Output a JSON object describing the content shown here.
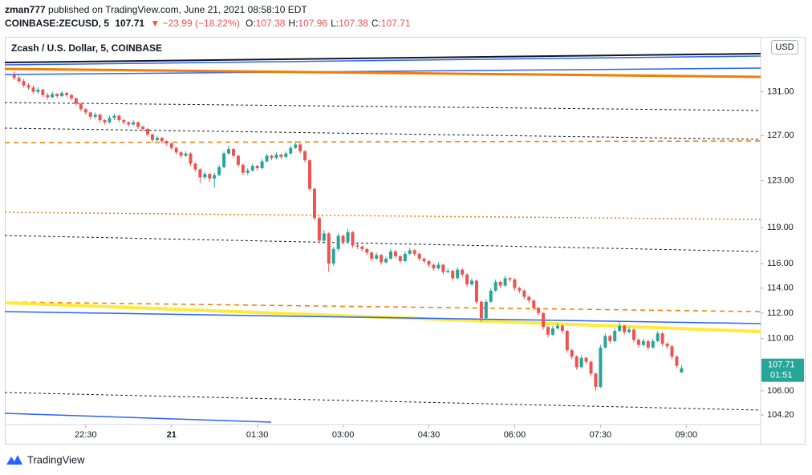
{
  "header": {
    "publisher": "zman777",
    "published": "published on TradingView.com, June 21, 2021 08:58:10 EDT",
    "symbol": "COINBASE:ZECUSD, 5",
    "price": "107.71",
    "change": "▼ −23.99 (−18.22%)",
    "ohlc": [
      {
        "label": "O:",
        "value": "107.38"
      },
      {
        "label": "H:",
        "value": "107.96"
      },
      {
        "label": "L:",
        "value": "107.38"
      },
      {
        "label": "C:",
        "value": "107.71"
      }
    ]
  },
  "chart_data": {
    "type": "candlestick",
    "title": "Zcash / U.S. Dollar, 5, COINBASE",
    "currency": "USD",
    "up_color": "#26a69a",
    "down_color": "#ef5350",
    "log_scale": true,
    "xlim": [
      1266,
      2058
    ],
    "ylim": [
      103.5,
      136.2
    ],
    "xticks": [
      {
        "value": 1350,
        "label": "22:30"
      },
      {
        "value": 1440,
        "label": "21"
      },
      {
        "value": 1530,
        "label": "01:30"
      },
      {
        "value": 1620,
        "label": "03:00"
      },
      {
        "value": 1710,
        "label": "04:30"
      },
      {
        "value": 1800,
        "label": "06:00"
      },
      {
        "value": 1890,
        "label": "07:30"
      },
      {
        "value": 1980,
        "label": "09:00"
      }
    ],
    "yticks": [
      {
        "value": 131,
        "label": "131.00"
      },
      {
        "value": 127,
        "label": "127.00"
      },
      {
        "value": 123,
        "label": "123.00"
      },
      {
        "value": 119,
        "label": "119.00"
      },
      {
        "value": 116,
        "label": "116.00"
      },
      {
        "value": 114,
        "label": "114.00"
      },
      {
        "value": 112,
        "label": "112.00"
      },
      {
        "value": 110,
        "label": "110.00"
      },
      {
        "value": 106,
        "label": "106.00"
      },
      {
        "value": 104.2,
        "label": "104.20"
      }
    ],
    "last_price_label": "107.71",
    "countdown": "01:51",
    "x": [
      1275,
      1280,
      1285,
      1290,
      1295,
      1300,
      1305,
      1310,
      1315,
      1320,
      1325,
      1330,
      1335,
      1340,
      1345,
      1350,
      1355,
      1360,
      1365,
      1370,
      1375,
      1380,
      1385,
      1390,
      1395,
      1400,
      1405,
      1410,
      1415,
      1420,
      1425,
      1430,
      1435,
      1440,
      1445,
      1450,
      1455,
      1460,
      1465,
      1470,
      1475,
      1480,
      1485,
      1490,
      1495,
      1500,
      1505,
      1510,
      1515,
      1520,
      1525,
      1530,
      1535,
      1540,
      1545,
      1550,
      1555,
      1560,
      1565,
      1570,
      1575,
      1580,
      1585,
      1590,
      1595,
      1600,
      1605,
      1610,
      1615,
      1620,
      1625,
      1630,
      1635,
      1640,
      1645,
      1650,
      1655,
      1660,
      1665,
      1670,
      1675,
      1680,
      1685,
      1690,
      1695,
      1700,
      1705,
      1710,
      1715,
      1720,
      1725,
      1730,
      1735,
      1740,
      1745,
      1750,
      1755,
      1760,
      1765,
      1770,
      1775,
      1780,
      1785,
      1790,
      1795,
      1800,
      1805,
      1810,
      1815,
      1820,
      1825,
      1830,
      1835,
      1840,
      1845,
      1850,
      1855,
      1860,
      1865,
      1870,
      1875,
      1880,
      1885,
      1890,
      1895,
      1900,
      1905,
      1910,
      1915,
      1920,
      1925,
      1930,
      1935,
      1940,
      1945,
      1950,
      1955,
      1960,
      1965,
      1970,
      1975
    ],
    "candles": [
      [
        132.6,
        132.9,
        132.1,
        132.3
      ],
      [
        132.3,
        132.5,
        131.8,
        132.0
      ],
      [
        132.0,
        132.2,
        131.4,
        131.6
      ],
      [
        131.6,
        131.8,
        131.2,
        131.4
      ],
      [
        131.4,
        131.6,
        130.8,
        131.0
      ],
      [
        131.0,
        131.4,
        130.8,
        131.2
      ],
      [
        131.2,
        131.3,
        130.5,
        130.7
      ],
      [
        130.7,
        130.9,
        130.3,
        130.5
      ],
      [
        130.5,
        131.0,
        130.4,
        130.8
      ],
      [
        130.8,
        130.9,
        130.4,
        130.6
      ],
      [
        130.6,
        131.1,
        130.5,
        130.9
      ],
      [
        130.9,
        131.0,
        130.5,
        130.7
      ],
      [
        130.7,
        130.8,
        130.2,
        130.4
      ],
      [
        130.4,
        130.5,
        129.7,
        129.9
      ],
      [
        129.9,
        130.0,
        129.2,
        129.4
      ],
      [
        129.4,
        129.5,
        128.9,
        129.1
      ],
      [
        129.1,
        129.2,
        128.5,
        128.7
      ],
      [
        128.7,
        129.1,
        128.5,
        128.9
      ],
      [
        128.9,
        129.0,
        128.2,
        128.4
      ],
      [
        128.4,
        128.5,
        128.0,
        128.2
      ],
      [
        128.2,
        128.8,
        128.1,
        128.6
      ],
      [
        128.6,
        129.0,
        128.4,
        128.8
      ],
      [
        128.8,
        128.9,
        128.2,
        128.4
      ],
      [
        128.4,
        128.5,
        128.0,
        128.2
      ],
      [
        128.2,
        128.3,
        127.8,
        128.0
      ],
      [
        128.0,
        128.4,
        127.9,
        128.2
      ],
      [
        128.2,
        128.3,
        127.6,
        127.8
      ],
      [
        127.8,
        127.9,
        127.4,
        127.6
      ],
      [
        127.6,
        127.7,
        126.9,
        127.1
      ],
      [
        127.1,
        127.2,
        126.4,
        126.6
      ],
      [
        126.6,
        127.0,
        126.5,
        126.8
      ],
      [
        126.8,
        126.9,
        126.3,
        126.5
      ],
      [
        126.5,
        126.6,
        126.1,
        126.3
      ],
      [
        126.3,
        126.4,
        125.7,
        125.9
      ],
      [
        125.9,
        126.0,
        125.3,
        125.5
      ],
      [
        125.5,
        125.6,
        125.0,
        125.2
      ],
      [
        125.2,
        125.6,
        125.1,
        125.4
      ],
      [
        125.4,
        125.5,
        124.3,
        124.5
      ],
      [
        124.5,
        124.6,
        123.8,
        124.0
      ],
      [
        124.0,
        124.1,
        122.8,
        123.3
      ],
      [
        123.3,
        123.8,
        123.1,
        123.6
      ],
      [
        123.6,
        123.7,
        122.9,
        123.2
      ],
      [
        123.2,
        123.7,
        122.4,
        123.5
      ],
      [
        123.5,
        124.4,
        123.4,
        124.2
      ],
      [
        124.2,
        125.6,
        124.1,
        125.4
      ],
      [
        125.4,
        126.1,
        125.3,
        125.8
      ],
      [
        125.8,
        125.9,
        125.0,
        125.2
      ],
      [
        125.2,
        125.3,
        124.2,
        124.4
      ],
      [
        124.4,
        124.5,
        123.5,
        123.7
      ],
      [
        123.7,
        124.1,
        123.5,
        123.9
      ],
      [
        123.9,
        124.5,
        123.8,
        124.3
      ],
      [
        124.3,
        124.4,
        123.9,
        124.1
      ],
      [
        124.1,
        124.9,
        124.0,
        124.7
      ],
      [
        124.7,
        125.4,
        124.6,
        125.2
      ],
      [
        125.2,
        125.3,
        124.8,
        125.0
      ],
      [
        125.0,
        125.5,
        124.9,
        125.3
      ],
      [
        125.3,
        125.4,
        124.9,
        125.1
      ],
      [
        125.1,
        125.6,
        125.0,
        125.4
      ],
      [
        125.4,
        126.1,
        125.3,
        125.9
      ],
      [
        125.9,
        126.5,
        125.8,
        126.2
      ],
      [
        126.2,
        126.3,
        125.4,
        125.6
      ],
      [
        125.6,
        125.7,
        124.6,
        124.8
      ],
      [
        124.8,
        124.9,
        122.1,
        122.3
      ],
      [
        122.3,
        122.4,
        119.6,
        119.8
      ],
      [
        119.8,
        119.9,
        117.7,
        117.9
      ],
      [
        117.9,
        118.8,
        117.6,
        118.5
      ],
      [
        118.5,
        118.6,
        115.3,
        116.0
      ],
      [
        116.0,
        117.4,
        115.8,
        117.2
      ],
      [
        117.2,
        118.5,
        117.0,
        118.3
      ],
      [
        118.3,
        118.4,
        117.6,
        117.8
      ],
      [
        117.8,
        118.9,
        117.7,
        118.6
      ],
      [
        118.6,
        118.7,
        117.3,
        117.5
      ],
      [
        117.5,
        117.7,
        117.2,
        117.4
      ],
      [
        117.4,
        117.5,
        117.0,
        117.2
      ],
      [
        117.2,
        117.3,
        116.7,
        116.9
      ],
      [
        116.9,
        117.0,
        116.2,
        116.4
      ],
      [
        116.4,
        116.9,
        116.3,
        116.7
      ],
      [
        116.7,
        116.8,
        115.9,
        116.1
      ],
      [
        116.1,
        116.6,
        116.0,
        116.4
      ],
      [
        116.4,
        117.2,
        116.3,
        117.0
      ],
      [
        117.0,
        117.1,
        116.4,
        116.6
      ],
      [
        116.6,
        116.7,
        116.0,
        116.2
      ],
      [
        116.2,
        117.0,
        116.1,
        116.8
      ],
      [
        116.8,
        117.3,
        116.7,
        117.1
      ],
      [
        117.1,
        117.2,
        116.6,
        116.8
      ],
      [
        116.8,
        116.9,
        116.2,
        116.4
      ],
      [
        116.4,
        116.5,
        116.0,
        116.2
      ],
      [
        116.2,
        116.3,
        115.7,
        115.9
      ],
      [
        115.9,
        116.0,
        115.4,
        115.6
      ],
      [
        115.6,
        116.1,
        115.5,
        115.9
      ],
      [
        115.9,
        116.0,
        115.1,
        115.3
      ],
      [
        115.3,
        115.6,
        115.2,
        115.4
      ],
      [
        115.4,
        115.5,
        114.6,
        114.8
      ],
      [
        114.8,
        115.7,
        114.7,
        115.5
      ],
      [
        115.5,
        115.6,
        114.9,
        115.1
      ],
      [
        115.1,
        115.2,
        114.1,
        114.3
      ],
      [
        114.3,
        114.8,
        114.2,
        114.6
      ],
      [
        114.6,
        114.7,
        112.7,
        112.9
      ],
      [
        112.9,
        113.0,
        111.3,
        111.6
      ],
      [
        111.6,
        113.1,
        111.5,
        112.9
      ],
      [
        112.9,
        114.0,
        112.8,
        113.8
      ],
      [
        113.8,
        114.7,
        113.7,
        114.5
      ],
      [
        114.5,
        114.6,
        114.0,
        114.2
      ],
      [
        114.2,
        115.0,
        114.1,
        114.8
      ],
      [
        114.8,
        114.9,
        114.5,
        114.7
      ],
      [
        114.7,
        114.8,
        113.8,
        114.0
      ],
      [
        114.0,
        114.1,
        113.6,
        113.8
      ],
      [
        113.8,
        113.9,
        113.1,
        113.3
      ],
      [
        113.3,
        113.4,
        112.8,
        113.0
      ],
      [
        113.0,
        113.1,
        112.2,
        112.4
      ],
      [
        112.4,
        112.5,
        111.8,
        112.0
      ],
      [
        112.0,
        112.1,
        110.7,
        110.9
      ],
      [
        110.9,
        111.0,
        110.1,
        110.3
      ],
      [
        110.3,
        111.0,
        110.2,
        110.8
      ],
      [
        110.8,
        111.2,
        110.7,
        111.0
      ],
      [
        111.0,
        111.1,
        110.4,
        110.6
      ],
      [
        110.6,
        110.7,
        108.9,
        109.1
      ],
      [
        109.1,
        109.2,
        108.4,
        108.6
      ],
      [
        108.6,
        108.7,
        107.6,
        107.8
      ],
      [
        107.8,
        108.7,
        107.7,
        108.5
      ],
      [
        108.5,
        108.6,
        108.0,
        108.2
      ],
      [
        108.2,
        108.3,
        107.1,
        107.3
      ],
      [
        107.3,
        107.4,
        106.0,
        106.3
      ],
      [
        106.3,
        109.5,
        106.2,
        109.3
      ],
      [
        109.3,
        110.4,
        109.2,
        110.2
      ],
      [
        110.2,
        110.3,
        109.6,
        109.8
      ],
      [
        109.8,
        110.8,
        109.7,
        110.6
      ],
      [
        110.6,
        111.3,
        110.5,
        111.0
      ],
      [
        111.0,
        111.1,
        110.3,
        110.5
      ],
      [
        110.5,
        110.9,
        110.4,
        110.7
      ],
      [
        110.7,
        110.8,
        109.7,
        109.9
      ],
      [
        109.9,
        110.0,
        109.3,
        109.5
      ],
      [
        109.5,
        110.0,
        109.4,
        109.8
      ],
      [
        109.8,
        109.9,
        109.1,
        109.3
      ],
      [
        109.3,
        110.0,
        109.2,
        109.8
      ],
      [
        109.8,
        110.6,
        109.7,
        110.4
      ],
      [
        110.4,
        110.5,
        109.4,
        109.6
      ],
      [
        109.6,
        109.7,
        109.2,
        109.4
      ],
      [
        109.4,
        109.5,
        108.4,
        108.6
      ],
      [
        108.6,
        108.7,
        107.7,
        107.9
      ],
      [
        107.38,
        107.96,
        107.38,
        107.71
      ]
    ]
  },
  "footer": {
    "brand": "TradingView"
  }
}
